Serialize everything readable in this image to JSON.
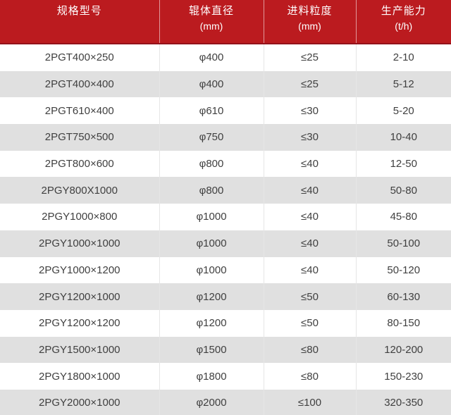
{
  "colors": {
    "header_bg": "#bb1b1f",
    "header_text": "#ffffff",
    "header_divider": "rgba(255,255,255,0.55)",
    "header_bottom_rule": "#93121a",
    "row_stripe": "#e0e0e0",
    "row_white": "#ffffff",
    "body_divider": "#e6e6e6",
    "body_text": "#404040"
  },
  "chart_data": {
    "type": "table",
    "columns": [
      {
        "label": "规格型号",
        "unit": ""
      },
      {
        "label": "辊体直径",
        "unit": "(mm)"
      },
      {
        "label": "进料粒度",
        "unit": "(mm)"
      },
      {
        "label": "生产能力",
        "unit": "(t/h)"
      }
    ],
    "rows": [
      [
        "2PGT400×250",
        "φ400",
        "≤25",
        "2-10"
      ],
      [
        "2PGT400×400",
        "φ400",
        "≤25",
        "5-12"
      ],
      [
        "2PGT610×400",
        "φ610",
        "≤30",
        "5-20"
      ],
      [
        "2PGT750×500",
        "φ750",
        "≤30",
        "10-40"
      ],
      [
        "2PGT800×600",
        "φ800",
        "≤40",
        "12-50"
      ],
      [
        "2PGY800X1000",
        "φ800",
        "≤40",
        "50-80"
      ],
      [
        "2PGY1000×800",
        "φ1000",
        "≤40",
        "45-80"
      ],
      [
        "2PGY1000×1000",
        "φ1000",
        "≤40",
        "50-100"
      ],
      [
        "2PGY1000×1200",
        "φ1000",
        "≤40",
        "50-120"
      ],
      [
        "2PGY1200×1000",
        "φ1200",
        "≤50",
        "60-130"
      ],
      [
        "2PGY1200×1200",
        "φ1200",
        "≤50",
        "80-150"
      ],
      [
        "2PGY1500×1000",
        "φ1500",
        "≤80",
        "120-200"
      ],
      [
        "2PGY1800×1000",
        "φ1800",
        "≤80",
        "150-230"
      ],
      [
        "2PGY2000×1000",
        "φ2000",
        "≤100",
        "320-350"
      ]
    ]
  }
}
